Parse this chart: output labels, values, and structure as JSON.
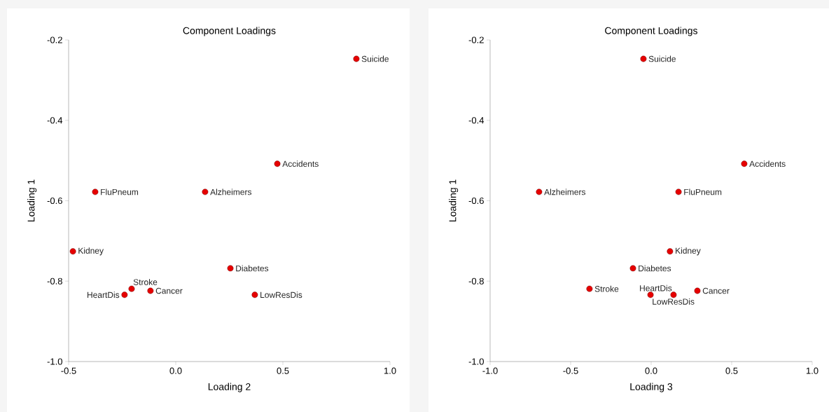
{
  "chart_data": [
    {
      "type": "scatter",
      "title": "Component Loadings",
      "xlabel": "Loading 2",
      "ylabel": "Loading 1",
      "marker": "circle",
      "xlim": [
        -0.5,
        1.0
      ],
      "ylim": [
        -1.0,
        -0.2
      ],
      "xticks": [
        {
          "value": -0.5,
          "label": "-0.5"
        },
        {
          "value": 0,
          "label": "0.0"
        },
        {
          "value": 0.5,
          "label": "0.5"
        },
        {
          "value": 1.0,
          "label": "1.0"
        }
      ],
      "yticks": [
        {
          "value": -1.0,
          "label": "-1.0"
        },
        {
          "value": -0.8,
          "label": "-0.8"
        },
        {
          "value": -0.6,
          "label": "-0.6"
        },
        {
          "value": -0.4,
          "label": "-0.4"
        },
        {
          "value": -0.2,
          "label": "-0.2"
        }
      ],
      "series": [
        {
          "color": "#e60000",
          "x": [
            0.843,
            0.474,
            -0.376,
            0.137,
            -0.48,
            0.255,
            -0.206,
            -0.118,
            -0.239,
            0.369
          ],
          "values": [
            -0.247,
            -0.508,
            -0.578,
            -0.578,
            -0.726,
            -0.768,
            -0.819,
            -0.824,
            -0.834,
            -0.834
          ]
        }
      ],
      "annotations": [
        {
          "text": "Suicide",
          "x": 0.843,
          "y": -0.247
        },
        {
          "text": "Accidents",
          "x": 0.474,
          "y": -0.508
        },
        {
          "text": "FluPneum",
          "x": -0.376,
          "y": -0.578
        },
        {
          "text": "Alzheimers",
          "x": 0.137,
          "y": -0.578
        },
        {
          "text": "Kidney",
          "x": -0.48,
          "y": -0.726
        },
        {
          "text": "Diabetes",
          "x": 0.255,
          "y": -0.768
        },
        {
          "text": "Stroke",
          "x": -0.206,
          "y": -0.819
        },
        {
          "text": "Cancer",
          "x": -0.118,
          "y": -0.824
        },
        {
          "text": "HeartDis",
          "x": -0.239,
          "y": -0.834
        },
        {
          "text": "LowResDis",
          "x": 0.369,
          "y": -0.834
        }
      ]
    },
    {
      "type": "scatter",
      "title": "Component Loadings",
      "xlabel": "Loading 3",
      "ylabel": "Loading 1",
      "marker": "circle",
      "xlim": [
        -1.0,
        1.0
      ],
      "ylim": [
        -1.0,
        -0.2
      ],
      "xticks": [
        {
          "value": -1.0,
          "label": "-1.0"
        },
        {
          "value": -0.5,
          "label": "-0.5"
        },
        {
          "value": 0,
          "label": "0.0"
        },
        {
          "value": 0.5,
          "label": "0.5"
        },
        {
          "value": 1.0,
          "label": "1.0"
        }
      ],
      "yticks": [
        {
          "value": -1.0,
          "label": "-1.0"
        },
        {
          "value": -0.8,
          "label": "-0.8"
        },
        {
          "value": -0.6,
          "label": "-0.6"
        },
        {
          "value": -0.4,
          "label": "-0.4"
        },
        {
          "value": -0.2,
          "label": "-0.2"
        }
      ],
      "series": [
        {
          "color": "#e60000",
          "x": [
            -0.048,
            0.578,
            -0.696,
            0.17,
            0.117,
            -0.113,
            -0.383,
            -0.004,
            0.139,
            0.287
          ],
          "values": [
            -0.247,
            -0.508,
            -0.578,
            -0.578,
            -0.726,
            -0.768,
            -0.819,
            -0.834,
            -0.834,
            -0.824
          ]
        }
      ],
      "annotations": [
        {
          "text": "Suicide",
          "x": -0.048,
          "y": -0.247
        },
        {
          "text": "Accidents",
          "x": 0.578,
          "y": -0.508
        },
        {
          "text": "Alzheimers",
          "x": -0.696,
          "y": -0.578
        },
        {
          "text": "FluPneum",
          "x": 0.17,
          "y": -0.578
        },
        {
          "text": "Kidney",
          "x": 0.117,
          "y": -0.726
        },
        {
          "text": "Diabetes",
          "x": -0.113,
          "y": -0.768
        },
        {
          "text": "Stroke",
          "x": -0.383,
          "y": -0.819
        },
        {
          "text": "LowResDis",
          "x": -0.004,
          "y": -0.834
        },
        {
          "text": "HeartDis",
          "x": 0.139,
          "y": -0.834
        },
        {
          "text": "Cancer",
          "x": 0.287,
          "y": -0.824
        }
      ]
    }
  ]
}
